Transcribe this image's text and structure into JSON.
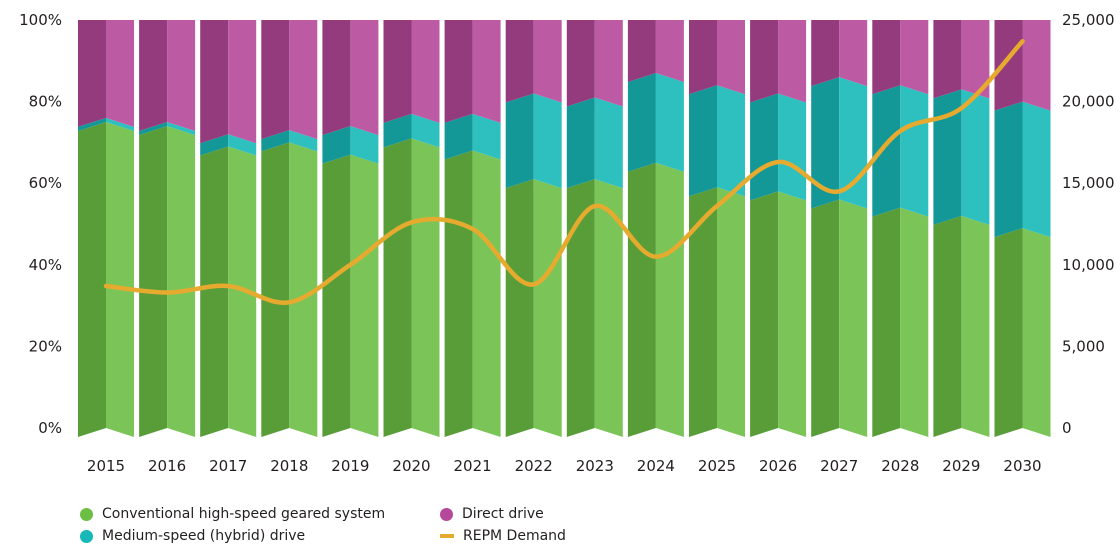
{
  "chart_data": {
    "type": "bar",
    "stacked": true,
    "percent": true,
    "categories": [
      "2015",
      "2016",
      "2017",
      "2018",
      "2019",
      "2020",
      "2021",
      "2022",
      "2023",
      "2024",
      "2025",
      "2026",
      "2027",
      "2028",
      "2029",
      "2030"
    ],
    "series": [
      {
        "name": "Conventional high-speed geared system",
        "axis": "left",
        "color": "#6cbf45",
        "values": [
          75,
          74,
          69,
          70,
          67,
          71,
          68,
          61,
          61,
          65,
          59,
          58,
          56,
          54,
          52,
          49
        ]
      },
      {
        "name": "Medium-speed (hybrid) drive",
        "axis": "left",
        "color": "#17b8b8",
        "values": [
          1,
          1,
          3,
          3,
          7,
          6,
          9,
          21,
          20,
          22,
          25,
          24,
          30,
          30,
          31,
          31
        ]
      },
      {
        "name": "Direct drive",
        "axis": "left",
        "color": "#b5489a",
        "values": [
          24,
          25,
          28,
          27,
          26,
          23,
          23,
          18,
          19,
          13,
          16,
          18,
          14,
          16,
          17,
          20
        ]
      },
      {
        "name": "REPM Demand",
        "type": "line",
        "axis": "right",
        "color": "#e6ab2e",
        "values": [
          8700,
          8300,
          8700,
          7700,
          10000,
          12600,
          12200,
          8800,
          13600,
          10500,
          13600,
          16300,
          14500,
          18200,
          19600,
          23700
        ]
      }
    ],
    "y_left": {
      "ticks": [
        "0%",
        "20%",
        "40%",
        "60%",
        "80%",
        "100%"
      ],
      "ylim": [
        0,
        100
      ]
    },
    "y_right": {
      "ticks": [
        "0",
        "5,000",
        "10,000",
        "15,000",
        "20,000",
        "25,000"
      ],
      "ylim": [
        0,
        25000
      ]
    },
    "legend_position": "bottom-left",
    "grid": false
  },
  "legend": [
    {
      "label": "Conventional high-speed geared system",
      "color": "#6cbf45",
      "marker": "dot"
    },
    {
      "label": "Direct drive",
      "color": "#b5489a",
      "marker": "dot"
    },
    {
      "label": "Medium-speed (hybrid) drive",
      "color": "#17b8b8",
      "marker": "dot"
    },
    {
      "label": "REPM Demand",
      "color": "#e6ab2e",
      "marker": "line"
    }
  ]
}
